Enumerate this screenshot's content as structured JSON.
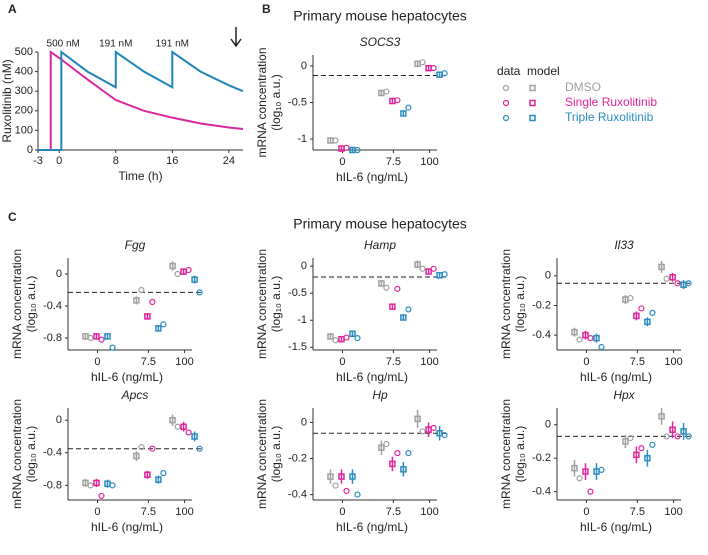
{
  "panel_labels": [
    "A",
    "B",
    "C"
  ],
  "headings": [
    "Primary mouse hepatocytes",
    "Primary mouse hepatocytes"
  ],
  "chart_data": [
    {
      "type": "line",
      "xlabel": "Time (h)",
      "ylabel": "Ruxolitinib (nM)",
      "xlim": [
        -3,
        26
      ],
      "xticks": [
        -3,
        0,
        8,
        16,
        24
      ],
      "ylim": [
        0,
        500
      ],
      "yticks": [
        0,
        100,
        200,
        300,
        400,
        500
      ],
      "annotations": [
        "500 nM",
        "191 nM",
        "191 nM"
      ],
      "series": [
        {
          "color": "#d9279c",
          "x": [
            -3,
            -1.2,
            -1.2,
            0,
            4,
            8,
            12,
            16,
            20,
            24,
            26
          ],
          "values": [
            0,
            0,
            500,
            470,
            360,
            255,
            200,
            165,
            135,
            115,
            107
          ]
        },
        {
          "color": "#1f86b8",
          "x": [
            -3,
            0.3,
            0.3,
            4,
            8,
            8,
            12,
            16,
            16,
            20,
            24,
            26
          ],
          "values": [
            0,
            0,
            500,
            400,
            320,
            500,
            400,
            320,
            500,
            400,
            330,
            300
          ]
        }
      ]
    },
    {
      "type": "dot",
      "title": "SOCS3",
      "xlabel": "hIL-6 (ng/mL)",
      "ylabel": [
        "mRNA concentration",
        "(log₁₀ a.u.)"
      ],
      "categories": [
        "0",
        "7.5",
        "100"
      ],
      "ylim": [
        -1.15,
        0.15
      ],
      "yticks": [
        0,
        -0.5,
        -1
      ],
      "reference_line": -0.13,
      "legend": true,
      "legend_title": [
        "data",
        "model"
      ],
      "series": [
        {
          "name": "DMSO",
          "color": "#a0a0a0",
          "values": [
            -1.02,
            -0.35,
            0.05
          ],
          "model_values": [
            -1.02,
            -0.37,
            0.03
          ],
          "model_errors": [
            0.03,
            0.03,
            0.04
          ]
        },
        {
          "name": "Single Ruxolitinib",
          "color": "#e0249a",
          "values": [
            -1.12,
            -0.47,
            -0.03
          ],
          "model_values": [
            -1.13,
            -0.48,
            -0.03
          ],
          "model_errors": [
            0.03,
            0.03,
            0.03
          ]
        },
        {
          "name": "Triple Ruxolitinib",
          "color": "#2a8cc0",
          "values": [
            -1.15,
            -0.57,
            -0.1
          ],
          "model_values": [
            -1.15,
            -0.65,
            -0.12
          ],
          "model_errors": [
            0.03,
            0.04,
            0.03
          ]
        }
      ]
    },
    {
      "type": "dot",
      "title": "Fgg",
      "xlabel": "hIL-6 (ng/mL)",
      "ylabel": [
        "mRNA concentration",
        "(log₁₀ a.u.)"
      ],
      "categories": [
        "0",
        "7.5",
        "100"
      ],
      "ylim": [
        -0.95,
        0.2
      ],
      "yticks": [
        0,
        -0.4,
        -0.8
      ],
      "reference_line": -0.23,
      "series": [
        {
          "color": "#a0a0a0",
          "values": [
            -0.8,
            -0.2,
            0.0
          ],
          "model_values": [
            -0.78,
            -0.33,
            0.1
          ],
          "model_errors": [
            0.04,
            0.05,
            0.06
          ]
        },
        {
          "color": "#e0249a",
          "values": [
            -0.82,
            -0.35,
            0.05
          ],
          "model_values": [
            -0.78,
            -0.53,
            0.03
          ],
          "model_errors": [
            0.04,
            0.04,
            0.04
          ]
        },
        {
          "color": "#2a8cc0",
          "values": [
            -0.92,
            -0.63,
            -0.23
          ],
          "model_values": [
            -0.78,
            -0.68,
            -0.07
          ],
          "model_errors": [
            0.04,
            0.04,
            0.05
          ]
        }
      ]
    },
    {
      "type": "dot",
      "title": "Hamp",
      "xlabel": "hIL-6 (ng/mL)",
      "ylabel": [
        "mRNA concentration",
        "(log₁₀ a.u.)"
      ],
      "categories": [
        "0",
        "7.5",
        "100"
      ],
      "ylim": [
        -1.55,
        0.15
      ],
      "yticks": [
        0,
        -0.5,
        -1,
        -1.5
      ],
      "reference_line": -0.2,
      "series": [
        {
          "color": "#a0a0a0",
          "values": [
            -1.37,
            -0.4,
            -0.05
          ],
          "model_values": [
            -1.3,
            -0.32,
            0.03
          ],
          "model_errors": [
            0.05,
            0.06,
            0.07
          ]
        },
        {
          "color": "#e0249a",
          "values": [
            -1.32,
            -0.42,
            -0.05
          ],
          "model_values": [
            -1.35,
            -0.75,
            -0.1
          ],
          "model_errors": [
            0.05,
            0.05,
            0.05
          ]
        },
        {
          "color": "#2a8cc0",
          "values": [
            -1.33,
            -0.8,
            -0.15
          ],
          "model_values": [
            -1.25,
            -0.95,
            -0.17
          ],
          "model_errors": [
            0.05,
            0.05,
            0.05
          ]
        }
      ]
    },
    {
      "type": "dot",
      "title": "Il33",
      "xlabel": "hIL-6 (ng/mL)",
      "ylabel": [
        "mRNA concentration",
        "(log₁₀ a.u.)"
      ],
      "categories": [
        "0",
        "7.5",
        "100"
      ],
      "ylim": [
        -0.5,
        0.12
      ],
      "yticks": [
        0,
        -0.2,
        -0.4
      ],
      "reference_line": -0.05,
      "series": [
        {
          "color": "#a0a0a0",
          "values": [
            -0.43,
            -0.15,
            -0.02
          ],
          "model_values": [
            -0.38,
            -0.16,
            0.06
          ],
          "model_errors": [
            0.03,
            0.03,
            0.04
          ]
        },
        {
          "color": "#e0249a",
          "values": [
            -0.42,
            -0.22,
            -0.05
          ],
          "model_values": [
            -0.4,
            -0.27,
            -0.01
          ],
          "model_errors": [
            0.03,
            0.03,
            0.03
          ]
        },
        {
          "color": "#2a8cc0",
          "values": [
            -0.48,
            -0.25,
            -0.05
          ],
          "model_values": [
            -0.42,
            -0.31,
            -0.06
          ],
          "model_errors": [
            0.03,
            0.03,
            0.03
          ]
        }
      ]
    },
    {
      "type": "dot",
      "title": "Apcs",
      "xlabel": "hIL-6 (ng/mL)",
      "ylabel": [
        "mRNA concentration",
        "(log₁₀ a.u.)"
      ],
      "categories": [
        "0",
        "7.5",
        "100"
      ],
      "ylim": [
        -0.98,
        0.15
      ],
      "yticks": [
        0,
        -0.4,
        -0.8
      ],
      "reference_line": -0.35,
      "series": [
        {
          "color": "#a0a0a0",
          "values": [
            -0.8,
            -0.33,
            -0.08
          ],
          "model_values": [
            -0.77,
            -0.44,
            0.0
          ],
          "model_errors": [
            0.05,
            0.06,
            0.07
          ]
        },
        {
          "color": "#e0249a",
          "values": [
            -0.93,
            -0.35,
            -0.15
          ],
          "model_values": [
            -0.77,
            -0.67,
            -0.08
          ],
          "model_errors": [
            0.05,
            0.05,
            0.06
          ]
        },
        {
          "color": "#2a8cc0",
          "values": [
            -0.8,
            -0.65,
            -0.35
          ],
          "model_values": [
            -0.78,
            -0.73,
            -0.2
          ],
          "model_errors": [
            0.05,
            0.05,
            0.06
          ]
        }
      ]
    },
    {
      "type": "dot",
      "title": "Hp",
      "xlabel": "hIL-6 (ng/mL)",
      "ylabel": [
        "mRNA concentration",
        "(log₁₀ a.u.)"
      ],
      "categories": [
        "0",
        "7.5",
        "100"
      ],
      "ylim": [
        -0.43,
        0.08
      ],
      "yticks": [
        0,
        -0.2,
        -0.4
      ],
      "reference_line": -0.06,
      "series": [
        {
          "color": "#a0a0a0",
          "values": [
            -0.35,
            -0.12,
            -0.05
          ],
          "model_values": [
            -0.3,
            -0.14,
            0.02
          ],
          "model_errors": [
            0.04,
            0.04,
            0.05
          ]
        },
        {
          "color": "#e0249a",
          "values": [
            -0.38,
            -0.17,
            -0.03
          ],
          "model_values": [
            -0.3,
            -0.23,
            -0.04
          ],
          "model_errors": [
            0.04,
            0.04,
            0.04
          ]
        },
        {
          "color": "#2a8cc0",
          "values": [
            -0.4,
            -0.17,
            -0.07
          ],
          "model_values": [
            -0.3,
            -0.26,
            -0.06
          ],
          "model_errors": [
            0.04,
            0.04,
            0.04
          ]
        }
      ]
    },
    {
      "type": "dot",
      "title": "Hpx",
      "xlabel": "hIL-6 (ng/mL)",
      "ylabel": [
        "mRNA concentration",
        "(log₁₀ a.u.)"
      ],
      "categories": [
        "0",
        "7.5",
        "100"
      ],
      "ylim": [
        -0.45,
        0.1
      ],
      "yticks": [
        0,
        -0.2,
        -0.4
      ],
      "reference_line": -0.07,
      "series": [
        {
          "color": "#a0a0a0",
          "values": [
            -0.32,
            -0.08,
            -0.07
          ],
          "model_values": [
            -0.26,
            -0.1,
            0.05
          ],
          "model_errors": [
            0.05,
            0.04,
            0.05
          ]
        },
        {
          "color": "#e0249a",
          "values": [
            -0.4,
            -0.14,
            -0.07
          ],
          "model_values": [
            -0.28,
            -0.18,
            -0.03
          ],
          "model_errors": [
            0.05,
            0.05,
            0.05
          ]
        },
        {
          "color": "#2a8cc0",
          "values": [
            -0.27,
            -0.12,
            -0.07
          ],
          "model_values": [
            -0.28,
            -0.2,
            -0.04
          ],
          "model_errors": [
            0.05,
            0.05,
            0.05
          ]
        }
      ]
    }
  ]
}
